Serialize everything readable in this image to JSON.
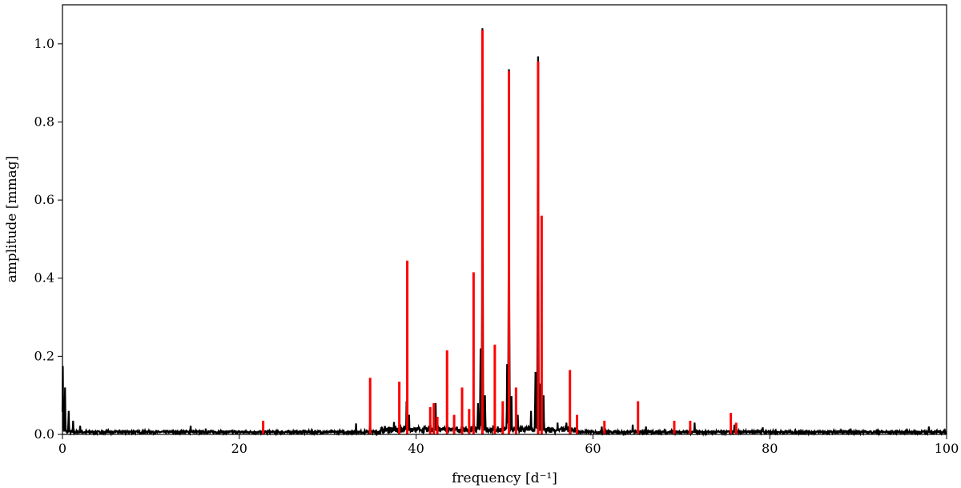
{
  "chart_data": {
    "type": "line",
    "xlabel": "frequency [d⁻¹]",
    "ylabel": "amplitude [mmag]",
    "xlim": [
      0,
      100
    ],
    "ylim": [
      0,
      1.1
    ],
    "xticks": [
      0,
      20,
      40,
      60,
      80,
      100
    ],
    "yticks": [
      0.0,
      0.2,
      0.4,
      0.6,
      0.8,
      1.0
    ],
    "xtick_labels": [
      "0",
      "20",
      "40",
      "60",
      "80",
      "100"
    ],
    "ytick_labels": [
      "0.0",
      "0.2",
      "0.4",
      "0.6",
      "0.8",
      "1.0"
    ],
    "grid": false,
    "colors": {
      "spectrum": "#000000",
      "frequencies": "#ff0000"
    },
    "series": [
      {
        "kind": "amplitude-spectrum",
        "color": "#000000",
        "features": [
          {
            "x": 0.05,
            "y": 0.175
          },
          {
            "x": 0.3,
            "y": 0.12
          },
          {
            "x": 0.7,
            "y": 0.06
          },
          {
            "x": 1.2,
            "y": 0.035
          },
          {
            "x": 2.0,
            "y": 0.022
          },
          {
            "x": 14.5,
            "y": 0.022
          },
          {
            "x": 16.2,
            "y": 0.015
          },
          {
            "x": 27.3,
            "y": 0.012
          },
          {
            "x": 33.2,
            "y": 0.028
          },
          {
            "x": 34.8,
            "y": 0.03
          },
          {
            "x": 37.5,
            "y": 0.032
          },
          {
            "x": 38.2,
            "y": 0.025
          },
          {
            "x": 38.9,
            "y": 0.085
          },
          {
            "x": 39.2,
            "y": 0.05
          },
          {
            "x": 42.2,
            "y": 0.08
          },
          {
            "x": 43.5,
            "y": 0.04
          },
          {
            "x": 46.5,
            "y": 0.06
          },
          {
            "x": 47.0,
            "y": 0.08
          },
          {
            "x": 47.3,
            "y": 0.22
          },
          {
            "x": 47.5,
            "y": 1.04
          },
          {
            "x": 47.8,
            "y": 0.1
          },
          {
            "x": 49.8,
            "y": 0.07
          },
          {
            "x": 50.3,
            "y": 0.18
          },
          {
            "x": 50.5,
            "y": 0.935
          },
          {
            "x": 50.8,
            "y": 0.098
          },
          {
            "x": 51.5,
            "y": 0.05
          },
          {
            "x": 53.0,
            "y": 0.06
          },
          {
            "x": 53.5,
            "y": 0.16
          },
          {
            "x": 53.8,
            "y": 0.968
          },
          {
            "x": 54.1,
            "y": 0.13
          },
          {
            "x": 54.4,
            "y": 0.1
          },
          {
            "x": 56.0,
            "y": 0.03
          },
          {
            "x": 57.0,
            "y": 0.03
          },
          {
            "x": 61.0,
            "y": 0.02
          },
          {
            "x": 64.5,
            "y": 0.025
          },
          {
            "x": 66.0,
            "y": 0.02
          },
          {
            "x": 71.0,
            "y": 0.025
          },
          {
            "x": 71.5,
            "y": 0.03
          },
          {
            "x": 76.0,
            "y": 0.025
          },
          {
            "x": 79.2,
            "y": 0.018
          },
          {
            "x": 98.0,
            "y": 0.02
          }
        ]
      },
      {
        "kind": "extracted-frequencies",
        "color": "#ff0000",
        "x": [
          22.7,
          34.8,
          38.1,
          39.0,
          41.6,
          42.0,
          42.4,
          43.5,
          44.3,
          45.2,
          46.0,
          46.5,
          47.5,
          48.9,
          49.8,
          50.5,
          51.3,
          53.8,
          54.2,
          57.4,
          58.2,
          61.3,
          65.1,
          69.2,
          71.0,
          75.6,
          76.2
        ],
        "y": [
          0.035,
          0.145,
          0.135,
          0.445,
          0.07,
          0.08,
          0.045,
          0.215,
          0.05,
          0.12,
          0.065,
          0.415,
          1.035,
          0.23,
          0.085,
          0.93,
          0.12,
          0.955,
          0.56,
          0.165,
          0.05,
          0.035,
          0.085,
          0.035,
          0.035,
          0.055,
          0.03
        ]
      }
    ]
  }
}
